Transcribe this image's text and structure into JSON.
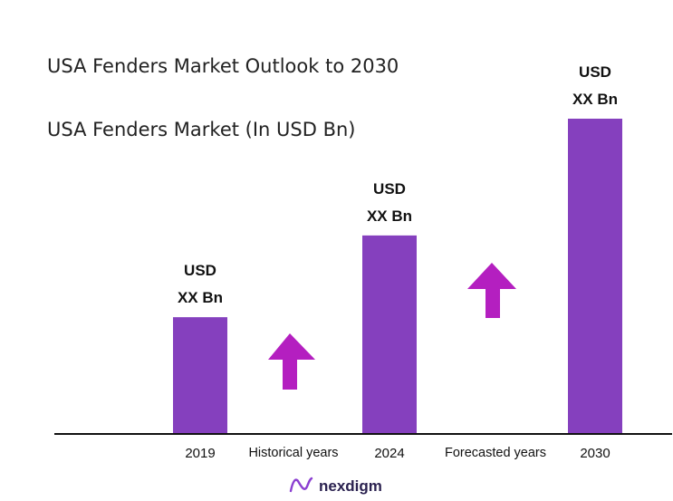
{
  "chart_data": {
    "type": "bar",
    "title": "USA Fenders Market Outlook to 2030",
    "subtitle": "USA Fenders Market (In USD Bn)",
    "categories": [
      "2019",
      "2024",
      "2030"
    ],
    "values": [
      1.0,
      1.7,
      2.7
    ],
    "value_labels": [
      [
        "USD",
        "XX Bn"
      ],
      [
        "USD",
        "XX Bn"
      ],
      [
        "USD",
        "XX Bn"
      ]
    ],
    "period_labels": [
      "Historical years",
      "Forecasted years"
    ],
    "ylim": [
      0,
      2.7
    ],
    "grid": false,
    "legend": "none"
  },
  "colors": {
    "bar": "#8540be",
    "arrow": "#b41fc0",
    "axis": "#111111",
    "brand_mark": "#8b3fd1"
  },
  "branding": {
    "logo_text": "nexdigm",
    "logo_icon": "nexdigm-logo-icon"
  }
}
